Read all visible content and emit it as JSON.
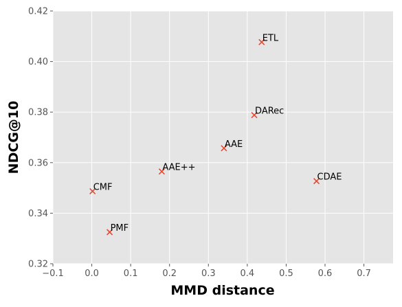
{
  "chart_data": {
    "type": "scatter",
    "xlabel": "MMD distance",
    "ylabel": "NDCG@10",
    "xlim": [
      -0.1,
      0.775
    ],
    "ylim": [
      0.32,
      0.42
    ],
    "xticks": [
      -0.1,
      0.0,
      0.1,
      0.2,
      0.3,
      0.4,
      0.5,
      0.6,
      0.7
    ],
    "xtick_labels": [
      "−0.1",
      "0.0",
      "0.1",
      "0.2",
      "0.3",
      "0.4",
      "0.5",
      "0.6",
      "0.7"
    ],
    "yticks": [
      0.32,
      0.34,
      0.36,
      0.38,
      0.4,
      0.42
    ],
    "ytick_labels": [
      "0.32",
      "0.34",
      "0.36",
      "0.38",
      "0.40",
      "0.42"
    ],
    "grid": true,
    "marker": "x",
    "colors": {
      "marker": "#e24a33",
      "plot_background": "#e5e5e5",
      "grid": "#ffffff"
    },
    "points": [
      {
        "label": "ETL",
        "x": 0.437,
        "y": 0.4077
      },
      {
        "label": "DARec",
        "x": 0.418,
        "y": 0.3788
      },
      {
        "label": "AAE",
        "x": 0.34,
        "y": 0.3657
      },
      {
        "label": "AAE++",
        "x": 0.18,
        "y": 0.3565
      },
      {
        "label": "CDAE",
        "x": 0.578,
        "y": 0.3527
      },
      {
        "label": "CMF",
        "x": 0.002,
        "y": 0.3487
      },
      {
        "label": "PMF",
        "x": 0.046,
        "y": 0.3325
      }
    ]
  }
}
